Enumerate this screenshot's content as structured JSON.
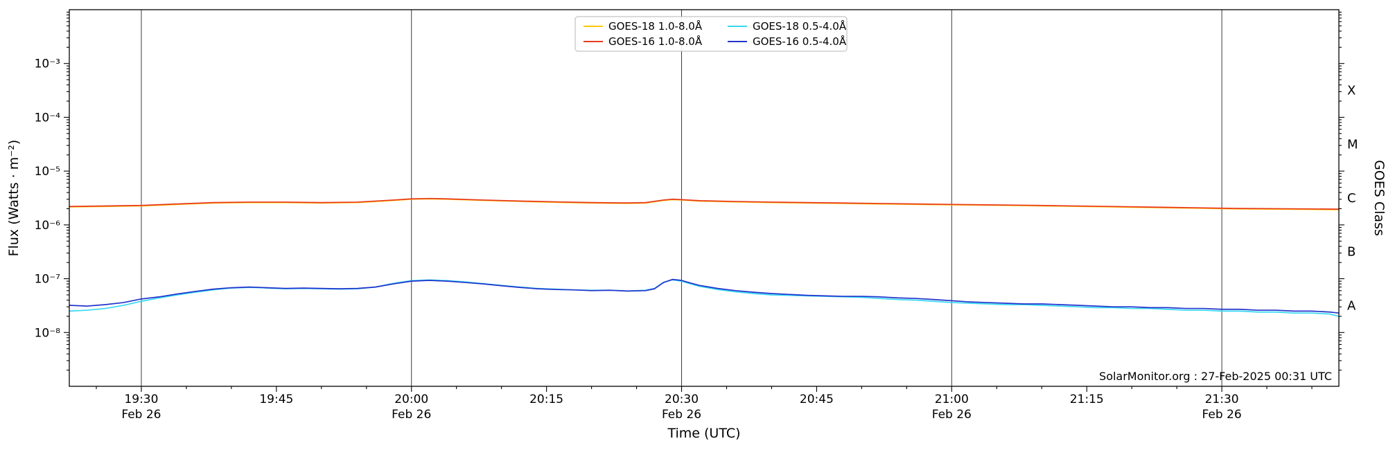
{
  "page": {
    "background": "#ffffff"
  },
  "chart_data": {
    "type": "line",
    "title": "",
    "xlabel": "Time (UTC)",
    "ylabel": "Flux (Watts · m⁻²)",
    "ylabel_right": "GOES Class",
    "annotation": "SolarMonitor.org : 27-Feb-2025 00:31 UTC",
    "x_unit": "minutes after 19:00 UTC, 26-Feb-2025",
    "x_range": [
      22,
      163
    ],
    "y_range_log10": [
      -9,
      -2
    ],
    "y_scale": "log",
    "grid": "vertical-only",
    "legend_position": "top-center",
    "y_ticks": [
      {
        "log10": -3,
        "label": "10⁻³"
      },
      {
        "log10": -4,
        "label": "10⁻⁴"
      },
      {
        "log10": -5,
        "label": "10⁻⁵"
      },
      {
        "log10": -6,
        "label": "10⁻⁶"
      },
      {
        "log10": -7,
        "label": "10⁻⁷"
      },
      {
        "log10": -8,
        "label": "10⁻⁸"
      }
    ],
    "x_ticks": [
      {
        "t": 30,
        "label": "19:30",
        "sub": "Feb 26"
      },
      {
        "t": 45,
        "label": "19:45",
        "sub": ""
      },
      {
        "t": 60,
        "label": "20:00",
        "sub": "Feb 26"
      },
      {
        "t": 75,
        "label": "20:15",
        "sub": ""
      },
      {
        "t": 90,
        "label": "20:30",
        "sub": "Feb 26"
      },
      {
        "t": 105,
        "label": "20:45",
        "sub": ""
      },
      {
        "t": 120,
        "label": "21:00",
        "sub": "Feb 26"
      },
      {
        "t": 135,
        "label": "21:15",
        "sub": ""
      },
      {
        "t": 150,
        "label": "21:30",
        "sub": "Feb 26"
      }
    ],
    "x_gridlines": [
      30,
      60,
      90,
      120,
      150
    ],
    "goes_classes": [
      {
        "label": "X",
        "log10_center": -3.5
      },
      {
        "label": "M",
        "log10_center": -4.5
      },
      {
        "label": "C",
        "log10_center": -5.5
      },
      {
        "label": "B",
        "log10_center": -6.5
      },
      {
        "label": "A",
        "log10_center": -7.5
      }
    ],
    "series": [
      {
        "name": "GOES-18 1.0-8.0Å",
        "color": "#ffc800",
        "points": [
          [
            22,
            2.16e-06
          ],
          [
            26,
            2.2e-06
          ],
          [
            30,
            2.26e-06
          ],
          [
            34,
            2.4e-06
          ],
          [
            38,
            2.55e-06
          ],
          [
            42,
            2.6e-06
          ],
          [
            46,
            2.6e-06
          ],
          [
            50,
            2.55e-06
          ],
          [
            54,
            2.6e-06
          ],
          [
            58,
            2.85e-06
          ],
          [
            60,
            3e-06
          ],
          [
            62,
            3.04e-06
          ],
          [
            64,
            3e-06
          ],
          [
            68,
            2.85e-06
          ],
          [
            72,
            2.73e-06
          ],
          [
            76,
            2.63e-06
          ],
          [
            80,
            2.55e-06
          ],
          [
            84,
            2.51e-06
          ],
          [
            86,
            2.55e-06
          ],
          [
            88,
            2.85e-06
          ],
          [
            89,
            2.94e-06
          ],
          [
            90,
            2.9e-06
          ],
          [
            92,
            2.77e-06
          ],
          [
            96,
            2.67e-06
          ],
          [
            100,
            2.6e-06
          ],
          [
            104,
            2.55e-06
          ],
          [
            108,
            2.5e-06
          ],
          [
            112,
            2.45e-06
          ],
          [
            116,
            2.4e-06
          ],
          [
            120,
            2.36e-06
          ],
          [
            124,
            2.32e-06
          ],
          [
            128,
            2.28e-06
          ],
          [
            132,
            2.23e-06
          ],
          [
            136,
            2.18e-06
          ],
          [
            140,
            2.13e-06
          ],
          [
            144,
            2.08e-06
          ],
          [
            148,
            2.03e-06
          ],
          [
            152,
            1.98e-06
          ],
          [
            156,
            1.96e-06
          ],
          [
            160,
            1.94e-06
          ],
          [
            163,
            1.92e-06
          ]
        ]
      },
      {
        "name": "GOES-16 1.0-8.0Å",
        "color": "#e8391e",
        "points": [
          [
            22,
            2.2e-06
          ],
          [
            26,
            2.25e-06
          ],
          [
            30,
            2.3e-06
          ],
          [
            34,
            2.45e-06
          ],
          [
            38,
            2.6e-06
          ],
          [
            42,
            2.65e-06
          ],
          [
            46,
            2.65e-06
          ],
          [
            50,
            2.6e-06
          ],
          [
            54,
            2.65e-06
          ],
          [
            58,
            2.9e-06
          ],
          [
            60,
            3.05e-06
          ],
          [
            62,
            3.1e-06
          ],
          [
            64,
            3.05e-06
          ],
          [
            68,
            2.9e-06
          ],
          [
            72,
            2.78e-06
          ],
          [
            76,
            2.68e-06
          ],
          [
            80,
            2.6e-06
          ],
          [
            84,
            2.56e-06
          ],
          [
            86,
            2.6e-06
          ],
          [
            88,
            2.9e-06
          ],
          [
            89,
            3e-06
          ],
          [
            90,
            2.95e-06
          ],
          [
            92,
            2.82e-06
          ],
          [
            96,
            2.72e-06
          ],
          [
            100,
            2.65e-06
          ],
          [
            104,
            2.6e-06
          ],
          [
            108,
            2.55e-06
          ],
          [
            112,
            2.5e-06
          ],
          [
            116,
            2.45e-06
          ],
          [
            120,
            2.4e-06
          ],
          [
            124,
            2.36e-06
          ],
          [
            128,
            2.32e-06
          ],
          [
            132,
            2.27e-06
          ],
          [
            136,
            2.22e-06
          ],
          [
            140,
            2.17e-06
          ],
          [
            144,
            2.12e-06
          ],
          [
            148,
            2.07e-06
          ],
          [
            152,
            2.02e-06
          ],
          [
            156,
            2e-06
          ],
          [
            160,
            1.98e-06
          ],
          [
            163,
            1.96e-06
          ]
        ]
      },
      {
        "name": "GOES-18 0.5-4.0Å",
        "color": "#36d8f2",
        "points": [
          [
            22,
            2.5e-08
          ],
          [
            24,
            2.6e-08
          ],
          [
            26,
            2.8e-08
          ],
          [
            28,
            3.2e-08
          ],
          [
            30,
            3.8e-08
          ],
          [
            32,
            4.4e-08
          ],
          [
            34,
            5e-08
          ],
          [
            36,
            5.6e-08
          ],
          [
            38,
            6.2e-08
          ],
          [
            40,
            6.7e-08
          ],
          [
            42,
            6.9e-08
          ],
          [
            44,
            6.7e-08
          ],
          [
            46,
            6.5e-08
          ],
          [
            48,
            6.6e-08
          ],
          [
            50,
            6.5e-08
          ],
          [
            52,
            6.4e-08
          ],
          [
            54,
            6.5e-08
          ],
          [
            56,
            7e-08
          ],
          [
            58,
            8.2e-08
          ],
          [
            60,
            9.2e-08
          ],
          [
            62,
            9.5e-08
          ],
          [
            64,
            9.2e-08
          ],
          [
            66,
            8.7e-08
          ],
          [
            68,
            8.1e-08
          ],
          [
            70,
            7.5e-08
          ],
          [
            72,
            7e-08
          ],
          [
            74,
            6.6e-08
          ],
          [
            76,
            6.4e-08
          ],
          [
            78,
            6.2e-08
          ],
          [
            80,
            6.1e-08
          ],
          [
            82,
            6.1e-08
          ],
          [
            84,
            5.9e-08
          ],
          [
            86,
            6.1e-08
          ],
          [
            87,
            6.6e-08
          ],
          [
            88,
            8.6e-08
          ],
          [
            89,
            9.5e-08
          ],
          [
            90,
            9e-08
          ],
          [
            91,
            8e-08
          ],
          [
            92,
            7.2e-08
          ],
          [
            94,
            6.3e-08
          ],
          [
            96,
            5.7e-08
          ],
          [
            98,
            5.3e-08
          ],
          [
            100,
            5e-08
          ],
          [
            102,
            4.9e-08
          ],
          [
            104,
            4.8e-08
          ],
          [
            106,
            4.7e-08
          ],
          [
            108,
            4.6e-08
          ],
          [
            110,
            4.5e-08
          ],
          [
            112,
            4.3e-08
          ],
          [
            114,
            4.1e-08
          ],
          [
            116,
            4e-08
          ],
          [
            118,
            3.8e-08
          ],
          [
            120,
            3.6e-08
          ],
          [
            122,
            3.5e-08
          ],
          [
            124,
            3.4e-08
          ],
          [
            126,
            3.3e-08
          ],
          [
            128,
            3.3e-08
          ],
          [
            130,
            3.2e-08
          ],
          [
            132,
            3.1e-08
          ],
          [
            134,
            3e-08
          ],
          [
            136,
            2.9e-08
          ],
          [
            138,
            2.9e-08
          ],
          [
            140,
            2.8e-08
          ],
          [
            142,
            2.8e-08
          ],
          [
            144,
            2.7e-08
          ],
          [
            146,
            2.6e-08
          ],
          [
            148,
            2.6e-08
          ],
          [
            150,
            2.5e-08
          ],
          [
            152,
            2.5e-08
          ],
          [
            154,
            2.4e-08
          ],
          [
            156,
            2.4e-08
          ],
          [
            158,
            2.3e-08
          ],
          [
            160,
            2.3e-08
          ],
          [
            162,
            2.2e-08
          ],
          [
            163,
            2e-08
          ]
        ]
      },
      {
        "name": "GOES-16 0.5-4.0Å",
        "color": "#2233cc",
        "points": [
          [
            22,
            3.2e-08
          ],
          [
            24,
            3.1e-08
          ],
          [
            26,
            3.3e-08
          ],
          [
            28,
            3.6e-08
          ],
          [
            30,
            4.2e-08
          ],
          [
            32,
            4.6e-08
          ],
          [
            34,
            5.2e-08
          ],
          [
            36,
            5.8e-08
          ],
          [
            38,
            6.4e-08
          ],
          [
            40,
            6.8e-08
          ],
          [
            42,
            7e-08
          ],
          [
            44,
            6.8e-08
          ],
          [
            46,
            6.6e-08
          ],
          [
            48,
            6.7e-08
          ],
          [
            50,
            6.6e-08
          ],
          [
            52,
            6.5e-08
          ],
          [
            54,
            6.6e-08
          ],
          [
            56,
            7e-08
          ],
          [
            58,
            8e-08
          ],
          [
            60,
            9e-08
          ],
          [
            62,
            9.3e-08
          ],
          [
            64,
            9e-08
          ],
          [
            66,
            8.5e-08
          ],
          [
            68,
            8e-08
          ],
          [
            70,
            7.4e-08
          ],
          [
            72,
            6.9e-08
          ],
          [
            74,
            6.5e-08
          ],
          [
            76,
            6.3e-08
          ],
          [
            78,
            6.2e-08
          ],
          [
            80,
            6e-08
          ],
          [
            82,
            6.1e-08
          ],
          [
            84,
            5.9e-08
          ],
          [
            86,
            6e-08
          ],
          [
            87,
            6.5e-08
          ],
          [
            88,
            8.5e-08
          ],
          [
            89,
            9.7e-08
          ],
          [
            90,
            9.3e-08
          ],
          [
            91,
            8.3e-08
          ],
          [
            92,
            7.5e-08
          ],
          [
            94,
            6.6e-08
          ],
          [
            96,
            6e-08
          ],
          [
            98,
            5.6e-08
          ],
          [
            100,
            5.3e-08
          ],
          [
            102,
            5.1e-08
          ],
          [
            104,
            4.9e-08
          ],
          [
            106,
            4.8e-08
          ],
          [
            108,
            4.7e-08
          ],
          [
            110,
            4.7e-08
          ],
          [
            112,
            4.6e-08
          ],
          [
            114,
            4.4e-08
          ],
          [
            116,
            4.3e-08
          ],
          [
            118,
            4.1e-08
          ],
          [
            120,
            3.9e-08
          ],
          [
            122,
            3.7e-08
          ],
          [
            124,
            3.6e-08
          ],
          [
            126,
            3.5e-08
          ],
          [
            128,
            3.4e-08
          ],
          [
            130,
            3.4e-08
          ],
          [
            132,
            3.3e-08
          ],
          [
            134,
            3.2e-08
          ],
          [
            136,
            3.1e-08
          ],
          [
            138,
            3e-08
          ],
          [
            140,
            3e-08
          ],
          [
            142,
            2.9e-08
          ],
          [
            144,
            2.9e-08
          ],
          [
            146,
            2.8e-08
          ],
          [
            148,
            2.8e-08
          ],
          [
            150,
            2.7e-08
          ],
          [
            152,
            2.7e-08
          ],
          [
            154,
            2.6e-08
          ],
          [
            156,
            2.6e-08
          ],
          [
            158,
            2.5e-08
          ],
          [
            160,
            2.5e-08
          ],
          [
            162,
            2.4e-08
          ],
          [
            163,
            2.3e-08
          ]
        ]
      }
    ],
    "legend_layout": {
      "columns": 2,
      "order_col_major": [
        0,
        1,
        2,
        3
      ]
    },
    "colors": {
      "frame": "#000000",
      "grid": "#3a3a3a",
      "legend_border": "#b5b5b5"
    }
  }
}
